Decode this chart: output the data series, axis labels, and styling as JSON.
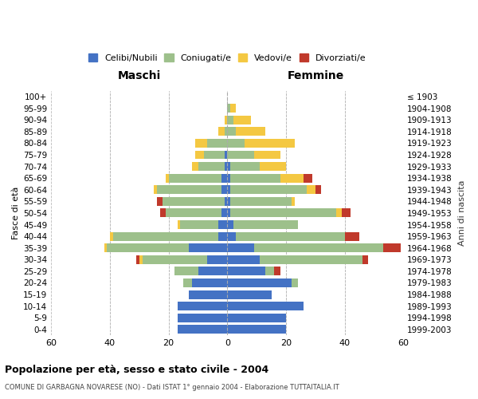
{
  "age_groups": [
    "0-4",
    "5-9",
    "10-14",
    "15-19",
    "20-24",
    "25-29",
    "30-34",
    "35-39",
    "40-44",
    "45-49",
    "50-54",
    "55-59",
    "60-64",
    "65-69",
    "70-74",
    "75-79",
    "80-84",
    "85-89",
    "90-94",
    "95-99",
    "100+"
  ],
  "birth_years": [
    "1999-2003",
    "1994-1998",
    "1989-1993",
    "1984-1988",
    "1979-1983",
    "1974-1978",
    "1969-1973",
    "1964-1968",
    "1959-1963",
    "1954-1958",
    "1949-1953",
    "1944-1948",
    "1939-1943",
    "1934-1938",
    "1929-1933",
    "1924-1928",
    "1919-1923",
    "1914-1918",
    "1909-1913",
    "1904-1908",
    "≤ 1903"
  ],
  "maschi": {
    "celibi": [
      17,
      17,
      17,
      13,
      12,
      10,
      7,
      13,
      3,
      3,
      2,
      1,
      2,
      2,
      1,
      1,
      0,
      0,
      0,
      0,
      0
    ],
    "coniugati": [
      0,
      0,
      0,
      0,
      3,
      8,
      22,
      28,
      36,
      13,
      19,
      21,
      22,
      18,
      9,
      7,
      7,
      1,
      0,
      0,
      0
    ],
    "vedovi": [
      0,
      0,
      0,
      0,
      0,
      0,
      1,
      1,
      1,
      1,
      0,
      0,
      1,
      1,
      2,
      3,
      4,
      2,
      1,
      0,
      0
    ],
    "divorziati": [
      0,
      0,
      0,
      0,
      0,
      0,
      1,
      0,
      0,
      0,
      2,
      2,
      0,
      0,
      0,
      0,
      0,
      0,
      0,
      0,
      0
    ]
  },
  "femmine": {
    "nubili": [
      20,
      20,
      26,
      15,
      22,
      13,
      11,
      9,
      3,
      2,
      1,
      1,
      1,
      1,
      1,
      0,
      0,
      0,
      0,
      0,
      0
    ],
    "coniugate": [
      0,
      0,
      0,
      0,
      2,
      3,
      35,
      44,
      37,
      22,
      36,
      21,
      26,
      17,
      10,
      9,
      6,
      3,
      2,
      1,
      0
    ],
    "vedove": [
      0,
      0,
      0,
      0,
      0,
      0,
      0,
      0,
      0,
      0,
      2,
      1,
      3,
      8,
      9,
      9,
      17,
      10,
      6,
      2,
      0
    ],
    "divorziate": [
      0,
      0,
      0,
      0,
      0,
      2,
      2,
      6,
      5,
      0,
      3,
      0,
      2,
      3,
      0,
      0,
      0,
      0,
      0,
      0,
      0
    ]
  },
  "colors": {
    "celibi": "#4472C4",
    "coniugati": "#9DC08B",
    "vedovi": "#F4C842",
    "divorziati": "#C0392B"
  },
  "title": "Popolazione per età, sesso e stato civile - 2004",
  "subtitle": "COMUNE DI GARBAGNA NOVARESE (NO) - Dati ISTAT 1° gennaio 2004 - Elaborazione TUTTAITALIA.IT",
  "xlabel_left": "Maschi",
  "xlabel_right": "Femmine",
  "ylabel_left": "Fasce di età",
  "ylabel_right": "Anni di nascita",
  "xlim": 60,
  "legend_labels": [
    "Celibi/Nubili",
    "Coniugati/e",
    "Vedovi/e",
    "Divorziati/e"
  ],
  "background_color": "#ffffff",
  "grid_color": "#bbbbbb"
}
